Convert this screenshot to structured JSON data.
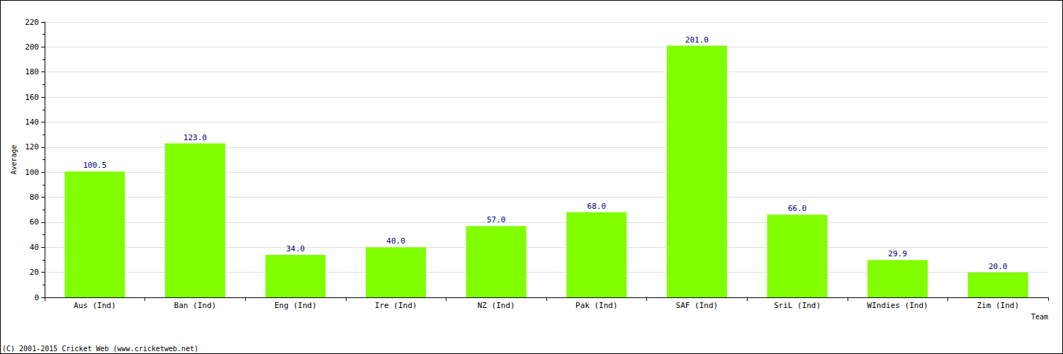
{
  "chart_data": {
    "type": "bar",
    "categories": [
      "Aus (Ind)",
      "Ban (Ind)",
      "Eng (Ind)",
      "Ire (Ind)",
      "NZ (Ind)",
      "Pak (Ind)",
      "SAF (Ind)",
      "SriL (Ind)",
      "WIndies (Ind)",
      "Zim (Ind)"
    ],
    "values": [
      100.5,
      123,
      34,
      40,
      57,
      68,
      201,
      66,
      29.9,
      20
    ],
    "value_labels": [
      "100.5",
      "123.0",
      "34.0",
      "40.0",
      "57.0",
      "68.0",
      "201.0",
      "66.0",
      "29.9",
      "20.0"
    ],
    "data_labels": true,
    "color": "#80ff00",
    "x_label": "Team",
    "y_label": "Average",
    "ylim": [
      0,
      220
    ],
    "yticks": [
      0,
      20,
      40,
      60,
      80,
      100,
      120,
      140,
      160,
      180,
      200,
      220
    ],
    "grid": true,
    "annotations": [
      "(C) 2001-2015 Cricket Web (www.cricketweb.net)"
    ]
  }
}
